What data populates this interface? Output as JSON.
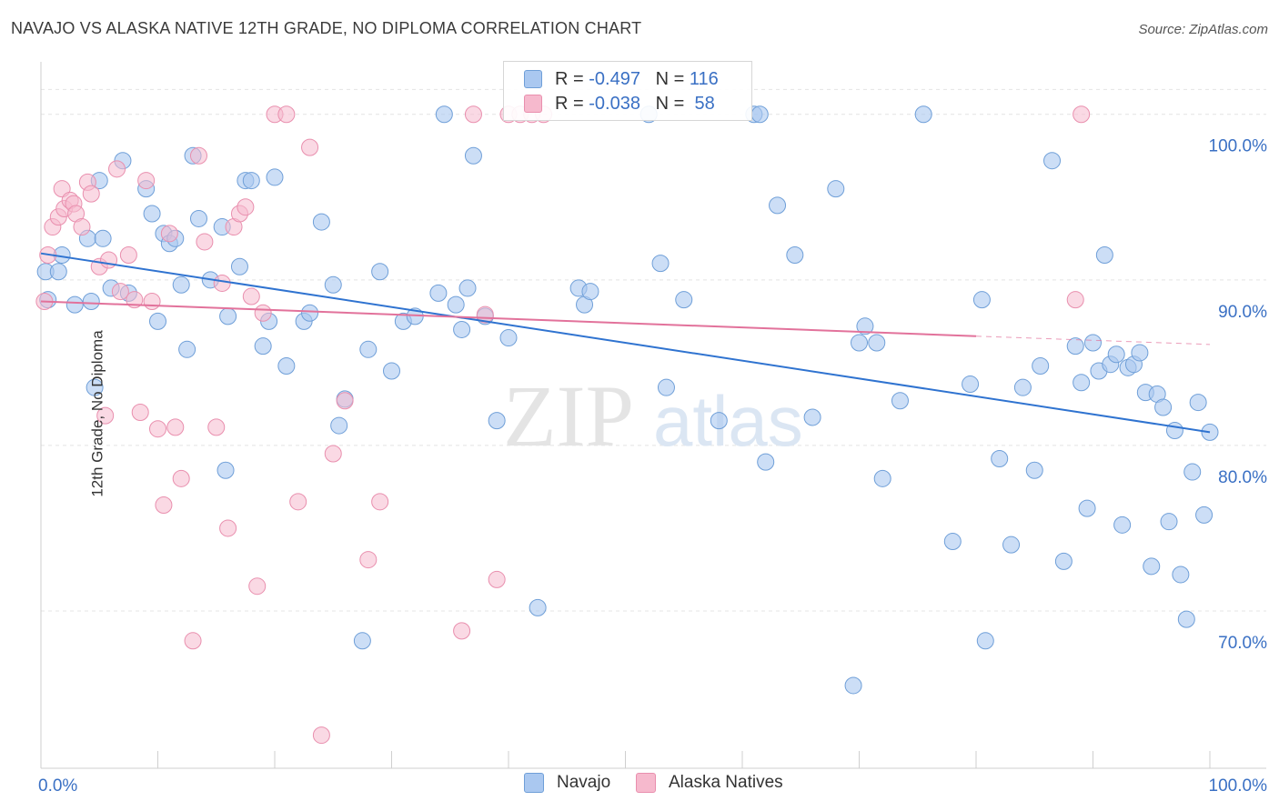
{
  "header": {
    "title": "NAVAJO VS ALASKA NATIVE 12TH GRADE, NO DIPLOMA CORRELATION CHART",
    "source": "Source: ZipAtlas.com"
  },
  "watermark": {
    "zip": "ZIP",
    "atlas": "atlas"
  },
  "legend_box": {
    "rows": [
      {
        "r_label": "R =",
        "r_value": "-0.497",
        "n_label": "N =",
        "n_value": "116"
      },
      {
        "r_label": "R =",
        "r_value": "-0.038",
        "n_label": "N =",
        "n_value": " 58"
      }
    ]
  },
  "colors": {
    "navajo_fill": "#aac8f0",
    "navajo_stroke": "#6f9fd8",
    "navajo_line": "#2f73d0",
    "alaska_fill": "#f6b9cd",
    "alaska_stroke": "#e98fae",
    "alaska_line": "#e2729b",
    "tick_label": "#3a70c4",
    "grid": "#e4e4e4"
  },
  "chart_data": {
    "type": "scatter",
    "title": "NAVAJO VS ALASKA NATIVE 12TH GRADE, NO DIPLOMA CORRELATION CHART",
    "xlabel": "",
    "ylabel": "12th Grade, No Diploma",
    "xlim": [
      0,
      100
    ],
    "ylim": [
      60.5,
      103.5
    ],
    "x_tick_labels": [
      "0.0%",
      "100.0%"
    ],
    "y_ticks": [
      70,
      80,
      90,
      100
    ],
    "y_tick_labels": [
      "70.0%",
      "80.0%",
      "90.0%",
      "100.0%"
    ],
    "grid": true,
    "legend_position": "bottom-center",
    "series": [
      {
        "name": "Navajo",
        "R": -0.497,
        "N": 116,
        "trend": {
          "x": [
            0,
            100
          ],
          "y": [
            91.6,
            80.8
          ]
        },
        "points": [
          [
            0.4,
            90.5
          ],
          [
            0.6,
            88.8
          ],
          [
            1.5,
            90.5
          ],
          [
            1.8,
            91.5
          ],
          [
            2.9,
            88.5
          ],
          [
            4.0,
            92.5
          ],
          [
            4.3,
            88.7
          ],
          [
            4.6,
            83.5
          ],
          [
            5.0,
            96.0
          ],
          [
            5.3,
            92.5
          ],
          [
            6.0,
            89.5
          ],
          [
            7.0,
            97.2
          ],
          [
            7.5,
            89.2
          ],
          [
            9.0,
            95.5
          ],
          [
            9.5,
            94.0
          ],
          [
            10.0,
            87.5
          ],
          [
            10.5,
            92.8
          ],
          [
            11.0,
            92.2
          ],
          [
            11.5,
            92.5
          ],
          [
            12.0,
            89.7
          ],
          [
            12.5,
            85.8
          ],
          [
            13.0,
            97.5
          ],
          [
            13.5,
            93.7
          ],
          [
            14.5,
            90.0
          ],
          [
            15.5,
            93.2
          ],
          [
            15.8,
            78.5
          ],
          [
            16.0,
            87.8
          ],
          [
            17.0,
            90.8
          ],
          [
            17.5,
            96.0
          ],
          [
            18.0,
            96.0
          ],
          [
            19.0,
            86.0
          ],
          [
            19.5,
            87.5
          ],
          [
            20.0,
            96.2
          ],
          [
            21.0,
            84.8
          ],
          [
            22.5,
            87.5
          ],
          [
            23.0,
            88.0
          ],
          [
            24.0,
            93.5
          ],
          [
            25.0,
            89.7
          ],
          [
            25.5,
            81.2
          ],
          [
            26.0,
            82.8
          ],
          [
            27.5,
            68.2
          ],
          [
            28.0,
            85.8
          ],
          [
            29.0,
            90.5
          ],
          [
            30.0,
            84.5
          ],
          [
            31.0,
            87.5
          ],
          [
            32.0,
            87.8
          ],
          [
            34.0,
            89.2
          ],
          [
            34.5,
            100.0
          ],
          [
            35.5,
            88.5
          ],
          [
            36.0,
            87.0
          ],
          [
            36.5,
            89.5
          ],
          [
            37.0,
            97.5
          ],
          [
            38.0,
            87.8
          ],
          [
            39.0,
            81.5
          ],
          [
            40.0,
            86.5
          ],
          [
            42.5,
            70.2
          ],
          [
            46.0,
            89.5
          ],
          [
            46.5,
            88.5
          ],
          [
            47.0,
            89.3
          ],
          [
            52.0,
            100.0
          ],
          [
            53.0,
            91.0
          ],
          [
            53.5,
            83.5
          ],
          [
            55.0,
            88.8
          ],
          [
            58.0,
            81.5
          ],
          [
            61.0,
            100.0
          ],
          [
            61.5,
            100.0
          ],
          [
            62.0,
            79.0
          ],
          [
            63.0,
            94.5
          ],
          [
            64.5,
            91.5
          ],
          [
            66.0,
            81.7
          ],
          [
            68.0,
            95.5
          ],
          [
            69.5,
            65.5
          ],
          [
            70.0,
            86.2
          ],
          [
            70.5,
            87.2
          ],
          [
            71.5,
            86.2
          ],
          [
            72.0,
            78.0
          ],
          [
            73.5,
            82.7
          ],
          [
            75.5,
            100.0
          ],
          [
            78.0,
            74.2
          ],
          [
            79.5,
            83.7
          ],
          [
            80.5,
            88.8
          ],
          [
            80.8,
            68.2
          ],
          [
            82.0,
            79.2
          ],
          [
            83.0,
            74.0
          ],
          [
            84.0,
            83.5
          ],
          [
            85.0,
            78.5
          ],
          [
            85.5,
            84.8
          ],
          [
            86.5,
            97.2
          ],
          [
            87.5,
            73.0
          ],
          [
            88.5,
            86.0
          ],
          [
            89.0,
            83.8
          ],
          [
            89.5,
            76.2
          ],
          [
            90.0,
            86.2
          ],
          [
            90.5,
            84.5
          ],
          [
            91.0,
            91.5
          ],
          [
            91.5,
            84.9
          ],
          [
            92.0,
            85.5
          ],
          [
            92.5,
            75.2
          ],
          [
            93.0,
            84.7
          ],
          [
            93.5,
            84.9
          ],
          [
            94.0,
            85.6
          ],
          [
            94.5,
            83.2
          ],
          [
            95.0,
            72.7
          ],
          [
            95.5,
            83.1
          ],
          [
            96.0,
            82.3
          ],
          [
            96.5,
            75.4
          ],
          [
            97.0,
            80.9
          ],
          [
            97.5,
            72.2
          ],
          [
            98.0,
            69.5
          ],
          [
            98.5,
            78.4
          ],
          [
            99.0,
            82.6
          ],
          [
            99.5,
            75.8
          ],
          [
            100.0,
            80.8
          ]
        ]
      },
      {
        "name": "Alaska Natives",
        "R": -0.038,
        "N": 58,
        "trend": {
          "x": [
            0,
            80
          ],
          "y": [
            88.7,
            86.6
          ]
        },
        "trend_dashed": {
          "x": [
            80,
            100
          ],
          "y": [
            86.6,
            86.1
          ]
        },
        "points": [
          [
            0.3,
            88.7
          ],
          [
            0.6,
            91.5
          ],
          [
            1.0,
            93.2
          ],
          [
            1.5,
            93.8
          ],
          [
            1.8,
            95.5
          ],
          [
            2.0,
            94.3
          ],
          [
            2.5,
            94.8
          ],
          [
            2.8,
            94.6
          ],
          [
            3.0,
            94.0
          ],
          [
            3.5,
            93.2
          ],
          [
            4.0,
            95.9
          ],
          [
            4.3,
            95.2
          ],
          [
            5.0,
            90.8
          ],
          [
            5.5,
            81.8
          ],
          [
            5.8,
            91.2
          ],
          [
            6.5,
            96.7
          ],
          [
            6.8,
            89.3
          ],
          [
            7.5,
            91.5
          ],
          [
            8.0,
            88.8
          ],
          [
            8.5,
            82.0
          ],
          [
            9.0,
            96.0
          ],
          [
            9.5,
            88.7
          ],
          [
            10.0,
            81.0
          ],
          [
            10.5,
            76.4
          ],
          [
            11.0,
            92.8
          ],
          [
            11.5,
            81.1
          ],
          [
            12.0,
            78.0
          ],
          [
            13.0,
            68.2
          ],
          [
            13.5,
            97.5
          ],
          [
            14.0,
            92.3
          ],
          [
            15.0,
            81.1
          ],
          [
            15.5,
            89.8
          ],
          [
            16.0,
            75.0
          ],
          [
            16.5,
            93.2
          ],
          [
            17.0,
            94.0
          ],
          [
            17.5,
            94.4
          ],
          [
            18.0,
            89.0
          ],
          [
            18.5,
            71.5
          ],
          [
            19.0,
            88.0
          ],
          [
            20.0,
            100.0
          ],
          [
            21.0,
            100.0
          ],
          [
            22.0,
            76.6
          ],
          [
            23.0,
            98.0
          ],
          [
            24.0,
            62.5
          ],
          [
            25.0,
            79.5
          ],
          [
            26.0,
            82.7
          ],
          [
            28.0,
            73.1
          ],
          [
            29.0,
            76.6
          ],
          [
            36.0,
            68.8
          ],
          [
            37.0,
            100.0
          ],
          [
            38.0,
            87.9
          ],
          [
            39.0,
            71.9
          ],
          [
            40.0,
            100.0
          ],
          [
            41.0,
            100.0
          ],
          [
            42.0,
            100.0
          ],
          [
            43.0,
            100.0
          ],
          [
            88.5,
            88.8
          ],
          [
            89.0,
            100.0
          ]
        ]
      }
    ]
  },
  "bottom_legend": {
    "items": [
      {
        "label": "Navajo"
      },
      {
        "label": "Alaska Natives"
      }
    ]
  }
}
